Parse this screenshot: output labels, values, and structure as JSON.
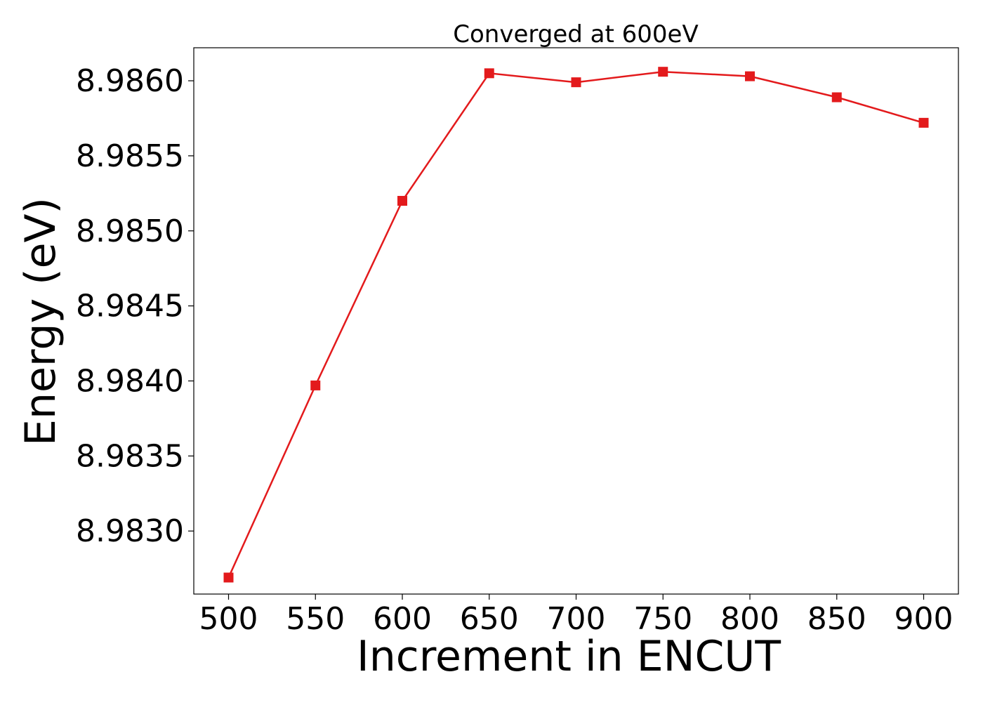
{
  "chart_data": {
    "type": "line",
    "title": "Converged at 600eV",
    "xlabel": "Increment in ENCUT",
    "ylabel": "Energy (eV)",
    "x": [
      500,
      550,
      600,
      650,
      700,
      750,
      800,
      850,
      900
    ],
    "series": [
      {
        "values": [
          8.98269,
          8.98397,
          8.9852,
          8.98605,
          8.98599,
          8.98606,
          8.98603,
          8.98589,
          8.98572
        ],
        "color": "#e31a1c",
        "marker": "square"
      }
    ],
    "xticks": [
      500,
      550,
      600,
      650,
      700,
      750,
      800,
      850,
      900
    ],
    "xtick_labels": [
      "500",
      "550",
      "600",
      "650",
      "700",
      "750",
      "800",
      "850",
      "900"
    ],
    "yticks": [
      8.983,
      8.9835,
      8.984,
      8.9845,
      8.985,
      8.9855,
      8.986
    ],
    "ytick_labels": [
      "8.9830",
      "8.9835",
      "8.9840",
      "8.9845",
      "8.9850",
      "8.9855",
      "8.9860"
    ],
    "xlim": [
      480,
      920
    ],
    "ylim": [
      8.98258,
      8.98622
    ],
    "grid": false,
    "legend": "none"
  }
}
